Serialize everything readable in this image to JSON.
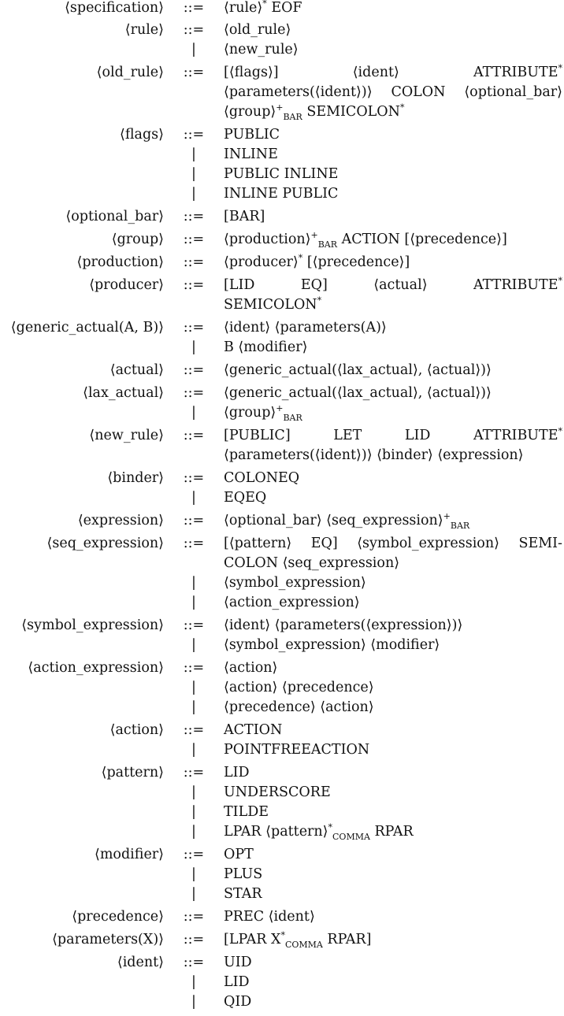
{
  "lines": [
    {
      "lhs": "⟨specification⟩",
      "op": "::=",
      "rhs": [
        {
          "t": "⟨rule⟩"
        },
        {
          "sup": "*"
        },
        {
          "t": " EOF"
        }
      ]
    },
    {
      "lhs": "⟨rule⟩",
      "op": "::=",
      "rhs": [
        {
          "t": "⟨old_rule⟩"
        }
      ]
    },
    {
      "lhs": "",
      "op": "|",
      "rhs": [
        {
          "t": "⟨new_rule⟩"
        }
      ]
    },
    {
      "lhs": "⟨old_rule⟩",
      "op": "::=",
      "justify": true,
      "rhs": [
        {
          "t": "[⟨flags⟩]"
        },
        {
          "t": "⟨ident⟩"
        },
        {
          "t": "ATTRIBUTE"
        },
        {
          "sup": "*"
        }
      ]
    },
    {
      "lhs": "",
      "op": "",
      "justify": true,
      "rhs": [
        {
          "t": "⟨parameters(⟨ident⟩)⟩"
        },
        {
          "t": "COLON"
        },
        {
          "t": "⟨optional_bar⟩"
        }
      ]
    },
    {
      "lhs": "",
      "op": "",
      "rhs": [
        {
          "t": "⟨group⟩"
        },
        {
          "sup": "+"
        },
        {
          "sub": "BAR"
        },
        {
          "t": " SEMICOLON"
        },
        {
          "sup": "*"
        }
      ]
    },
    {
      "lhs": "⟨flags⟩",
      "op": "::=",
      "rhs": [
        {
          "t": "PUBLIC"
        }
      ]
    },
    {
      "lhs": "",
      "op": "|",
      "rhs": [
        {
          "t": "INLINE"
        }
      ]
    },
    {
      "lhs": "",
      "op": "|",
      "rhs": [
        {
          "t": "PUBLIC INLINE"
        }
      ]
    },
    {
      "lhs": "",
      "op": "|",
      "rhs": [
        {
          "t": "INLINE PUBLIC"
        }
      ]
    },
    {
      "lhs": "⟨optional_bar⟩",
      "op": "::=",
      "rhs": [
        {
          "t": "[BAR]"
        }
      ]
    },
    {
      "lhs": "⟨group⟩",
      "op": "::=",
      "rhs": [
        {
          "t": "⟨production⟩"
        },
        {
          "sup": "+"
        },
        {
          "sub": "BAR"
        },
        {
          "t": " ACTION [⟨precedence⟩]"
        }
      ]
    },
    {
      "lhs": "⟨production⟩",
      "op": "::=",
      "rhs": [
        {
          "t": "⟨producer⟩"
        },
        {
          "sup": "*"
        },
        {
          "t": " [⟨precedence⟩]"
        }
      ]
    },
    {
      "lhs": "⟨producer⟩",
      "op": "::=",
      "justify": true,
      "rhs": [
        {
          "t": "[LID"
        },
        {
          "t": "EQ]"
        },
        {
          "t": "⟨actual⟩"
        },
        {
          "t": "ATTRIBUTE"
        },
        {
          "sup": "*"
        }
      ]
    },
    {
      "lhs": "",
      "op": "",
      "rhs": [
        {
          "t": "SEMICOLON"
        },
        {
          "sup": "*"
        }
      ]
    },
    {
      "lhs": "⟨generic_actual(A, B)⟩",
      "op": "::=",
      "rhs": [
        {
          "t": "⟨ident⟩ ⟨parameters(A)⟩"
        }
      ]
    },
    {
      "lhs": "",
      "op": "|",
      "rhs": [
        {
          "t": "B ⟨modifier⟩"
        }
      ]
    },
    {
      "lhs": "⟨actual⟩",
      "op": "::=",
      "rhs": [
        {
          "t": "⟨generic_actual(⟨lax_actual⟩, ⟨actual⟩)⟩"
        }
      ]
    },
    {
      "lhs": "⟨lax_actual⟩",
      "op": "::=",
      "rhs": [
        {
          "t": "⟨generic_actual(⟨lax_actual⟩, ⟨actual⟩)⟩"
        }
      ]
    },
    {
      "lhs": "",
      "op": "|",
      "rhs": [
        {
          "t": "⟨group⟩"
        },
        {
          "sup": "+"
        },
        {
          "sub": "BAR"
        }
      ]
    },
    {
      "lhs": "⟨new_rule⟩",
      "op": "::=",
      "justify": true,
      "rhs": [
        {
          "t": "[PUBLIC]"
        },
        {
          "t": "LET"
        },
        {
          "t": "LID"
        },
        {
          "t": "ATTRIBUTE"
        },
        {
          "sup": "*"
        }
      ]
    },
    {
      "lhs": "",
      "op": "",
      "rhs": [
        {
          "t": "⟨parameters(⟨ident⟩)⟩ ⟨binder⟩ ⟨expression⟩"
        }
      ]
    },
    {
      "lhs": "⟨binder⟩",
      "op": "::=",
      "rhs": [
        {
          "t": "COLONEQ"
        }
      ]
    },
    {
      "lhs": "",
      "op": "|",
      "rhs": [
        {
          "t": "EQEQ"
        }
      ]
    },
    {
      "lhs": "⟨expression⟩",
      "op": "::=",
      "rhs": [
        {
          "t": "⟨optional_bar⟩ ⟨seq_expression⟩"
        },
        {
          "sup": "+"
        },
        {
          "sub": "BAR"
        }
      ]
    },
    {
      "lhs": "⟨seq_expression⟩",
      "op": "::=",
      "justify": true,
      "rhs": [
        {
          "t": "[⟨pattern⟩"
        },
        {
          "t": "EQ]"
        },
        {
          "t": "⟨symbol_expression⟩"
        },
        {
          "t": "SEMI-"
        }
      ]
    },
    {
      "lhs": "",
      "op": "",
      "rhs": [
        {
          "t": "COLON ⟨seq_expression⟩"
        }
      ]
    },
    {
      "lhs": "",
      "op": "|",
      "rhs": [
        {
          "t": "⟨symbol_expression⟩"
        }
      ]
    },
    {
      "lhs": "",
      "op": "|",
      "rhs": [
        {
          "t": "⟨action_expression⟩"
        }
      ]
    },
    {
      "lhs": "⟨symbol_expression⟩",
      "op": "::=",
      "rhs": [
        {
          "t": "⟨ident⟩ ⟨parameters(⟨expression⟩)⟩"
        }
      ]
    },
    {
      "lhs": "",
      "op": "|",
      "rhs": [
        {
          "t": "⟨symbol_expression⟩ ⟨modifier⟩"
        }
      ]
    },
    {
      "lhs": "⟨action_expression⟩",
      "op": "::=",
      "rhs": [
        {
          "t": "⟨action⟩"
        }
      ]
    },
    {
      "lhs": "",
      "op": "|",
      "rhs": [
        {
          "t": "⟨action⟩ ⟨precedence⟩"
        }
      ]
    },
    {
      "lhs": "",
      "op": "|",
      "rhs": [
        {
          "t": "⟨precedence⟩ ⟨action⟩"
        }
      ]
    },
    {
      "lhs": "⟨action⟩",
      "op": "::=",
      "rhs": [
        {
          "t": "ACTION"
        }
      ]
    },
    {
      "lhs": "",
      "op": "|",
      "rhs": [
        {
          "t": "POINTFREEACTION"
        }
      ]
    },
    {
      "lhs": "⟨pattern⟩",
      "op": "::=",
      "rhs": [
        {
          "t": "LID"
        }
      ]
    },
    {
      "lhs": "",
      "op": "|",
      "rhs": [
        {
          "t": "UNDERSCORE"
        }
      ]
    },
    {
      "lhs": "",
      "op": "|",
      "rhs": [
        {
          "t": "TILDE"
        }
      ]
    },
    {
      "lhs": "",
      "op": "|",
      "rhs": [
        {
          "t": "LPAR ⟨pattern⟩"
        },
        {
          "sup": "*"
        },
        {
          "sub": "COMMA"
        },
        {
          "t": " RPAR"
        }
      ]
    },
    {
      "lhs": "⟨modifier⟩",
      "op": "::=",
      "rhs": [
        {
          "t": "OPT"
        }
      ]
    },
    {
      "lhs": "",
      "op": "|",
      "rhs": [
        {
          "t": "PLUS"
        }
      ]
    },
    {
      "lhs": "",
      "op": "|",
      "rhs": [
        {
          "t": "STAR"
        }
      ]
    },
    {
      "lhs": "⟨precedence⟩",
      "op": "::=",
      "rhs": [
        {
          "t": "PREC ⟨ident⟩"
        }
      ]
    },
    {
      "lhs": "⟨parameters(X)⟩",
      "op": "::=",
      "rhs": [
        {
          "t": "[LPAR X"
        },
        {
          "sup": "*"
        },
        {
          "sub": "COMMA"
        },
        {
          "t": " RPAR]"
        }
      ]
    },
    {
      "lhs": "⟨ident⟩",
      "op": "::=",
      "rhs": [
        {
          "t": "UID"
        }
      ]
    },
    {
      "lhs": "",
      "op": "|",
      "rhs": [
        {
          "t": "LID"
        }
      ]
    },
    {
      "lhs": "",
      "op": "|",
      "rhs": [
        {
          "t": "QID"
        }
      ]
    }
  ]
}
